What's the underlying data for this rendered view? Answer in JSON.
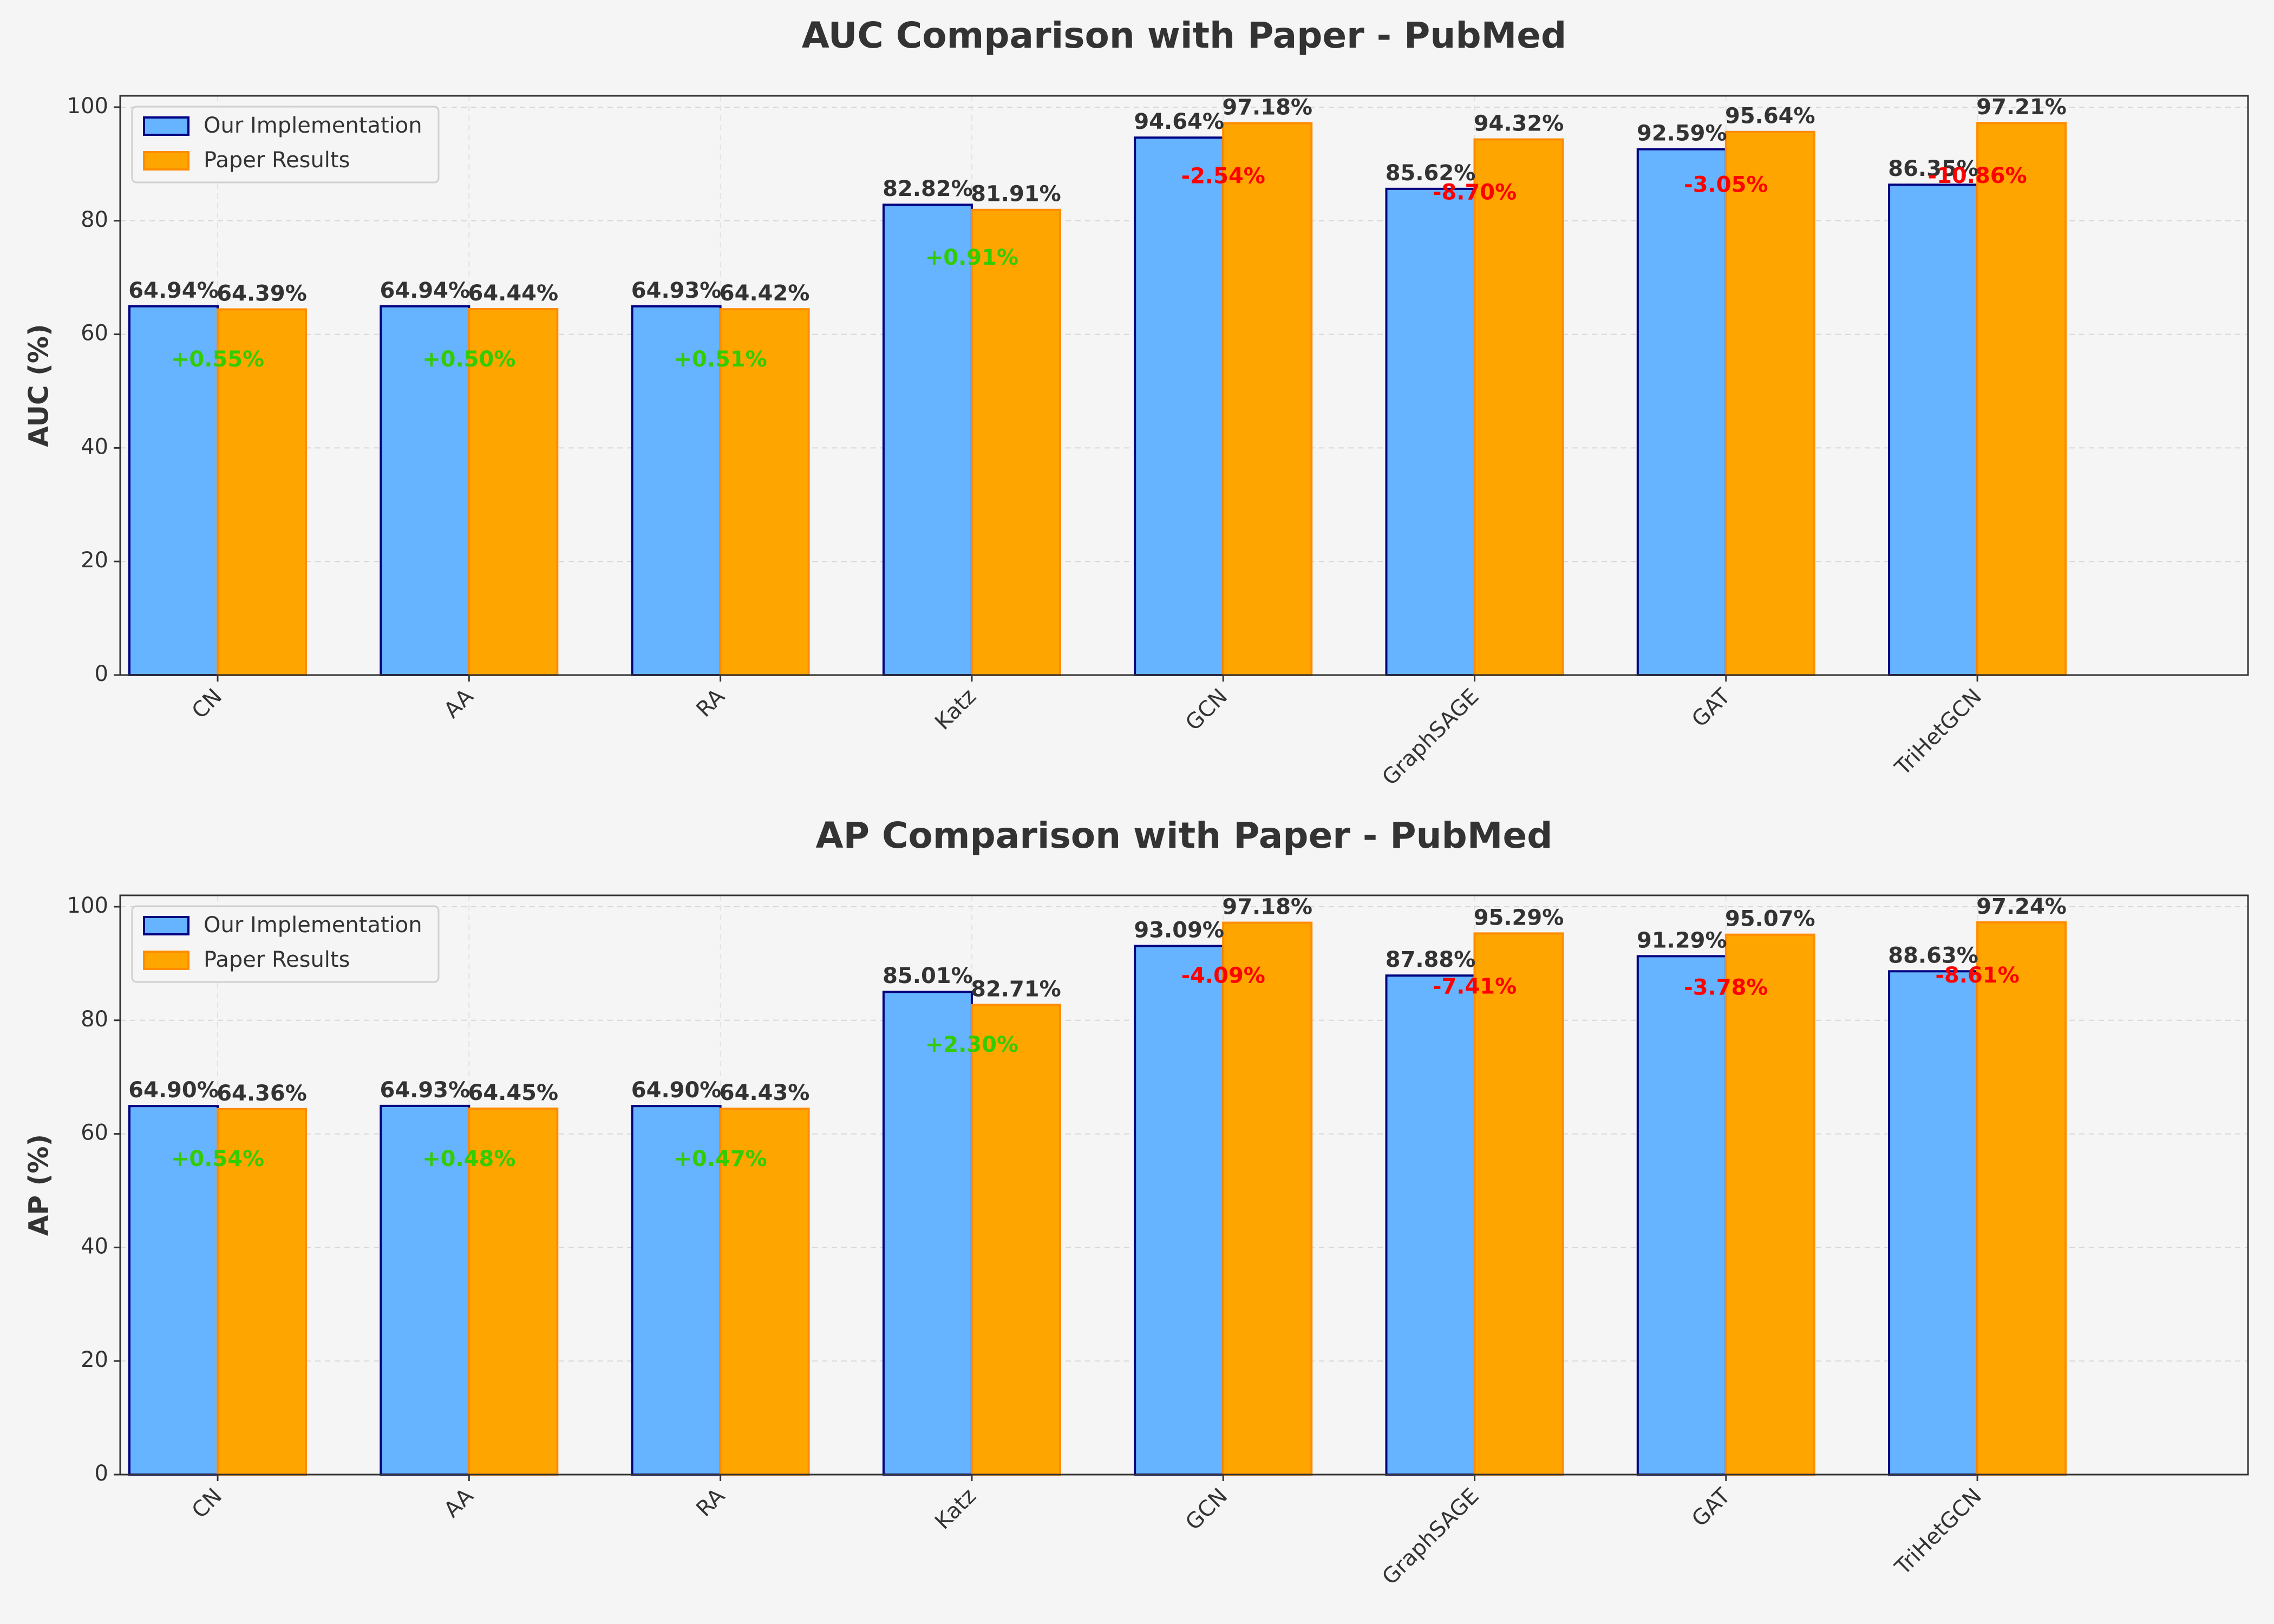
{
  "colors": {
    "background": "#f5f5f5",
    "ours_fill": "#66b3ff",
    "ours_edge": "#000080",
    "paper_fill": "#ffa500",
    "paper_edge": "#ff8c00",
    "positive": "#33cc00",
    "negative": "#ff0000",
    "text": "#333333"
  },
  "chart_data": [
    {
      "type": "bar",
      "title": "AUC Comparison with Paper - PubMed",
      "xlabel": "",
      "ylabel": "AUC (%)",
      "ylim": [
        0,
        102
      ],
      "yticks": [
        0,
        20,
        40,
        60,
        80,
        100
      ],
      "grid": true,
      "legend_position": "top-left",
      "categories": [
        "CN",
        "AA",
        "RA",
        "Katz",
        "GCN",
        "GraphSAGE",
        "GAT",
        "TriHetGCN"
      ],
      "series": [
        {
          "name": "Our Implementation",
          "values": [
            64.94,
            64.94,
            64.93,
            82.82,
            94.64,
            85.62,
            92.59,
            86.35
          ],
          "labels": [
            "64.94%",
            "64.94%",
            "64.93%",
            "82.82%",
            "94.64%",
            "85.62%",
            "92.59%",
            "86.35%"
          ]
        },
        {
          "name": "Paper Results",
          "values": [
            64.39,
            64.44,
            64.42,
            81.91,
            97.18,
            94.32,
            95.64,
            97.21
          ],
          "labels": [
            "64.39%",
            "64.44%",
            "64.42%",
            "81.91%",
            "97.18%",
            "94.32%",
            "95.64%",
            "97.21%"
          ]
        }
      ],
      "differences": [
        "+0.55%",
        "+0.50%",
        "+0.51%",
        "+0.91%",
        "-2.54%",
        "-8.70%",
        "-3.05%",
        "-10.86%"
      ]
    },
    {
      "type": "bar",
      "title": "AP Comparison with Paper - PubMed",
      "xlabel": "",
      "ylabel": "AP (%)",
      "ylim": [
        0,
        102
      ],
      "yticks": [
        0,
        20,
        40,
        60,
        80,
        100
      ],
      "grid": true,
      "legend_position": "top-left",
      "categories": [
        "CN",
        "AA",
        "RA",
        "Katz",
        "GCN",
        "GraphSAGE",
        "GAT",
        "TriHetGCN"
      ],
      "series": [
        {
          "name": "Our Implementation",
          "values": [
            64.9,
            64.93,
            64.9,
            85.01,
            93.09,
            87.88,
            91.29,
            88.63
          ],
          "labels": [
            "64.90%",
            "64.93%",
            "64.90%",
            "85.01%",
            "93.09%",
            "87.88%",
            "91.29%",
            "88.63%"
          ]
        },
        {
          "name": "Paper Results",
          "values": [
            64.36,
            64.45,
            64.43,
            82.71,
            97.18,
            95.29,
            95.07,
            97.24
          ],
          "labels": [
            "64.36%",
            "64.45%",
            "64.43%",
            "82.71%",
            "97.18%",
            "95.29%",
            "95.07%",
            "97.24%"
          ]
        }
      ],
      "differences": [
        "+0.54%",
        "+0.48%",
        "+0.47%",
        "+2.30%",
        "-4.09%",
        "-7.41%",
        "-3.78%",
        "-8.61%"
      ]
    }
  ]
}
